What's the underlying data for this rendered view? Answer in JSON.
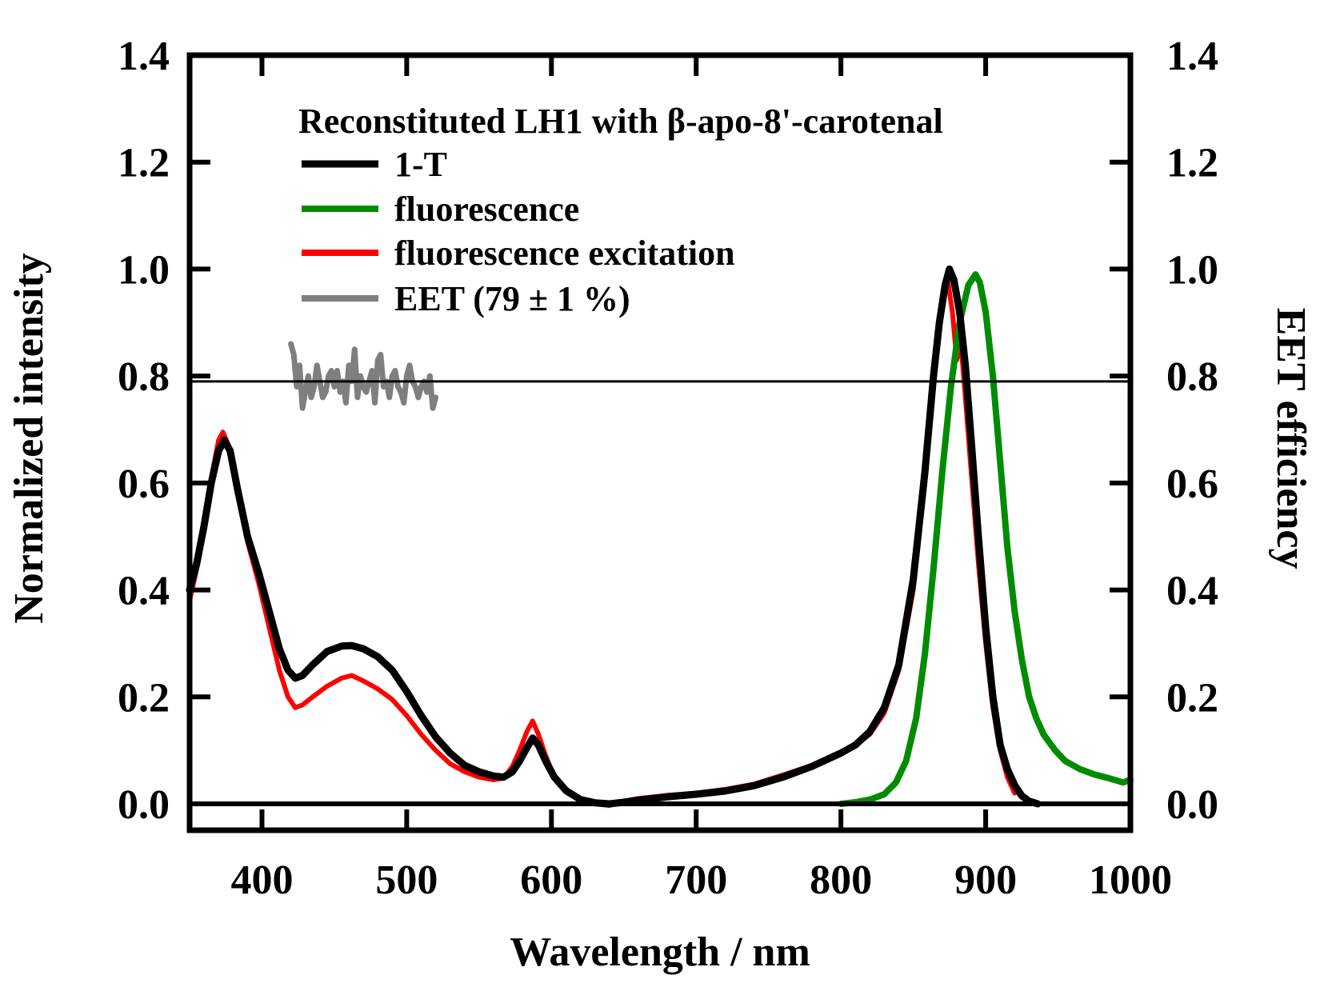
{
  "chart_data": {
    "type": "line",
    "title": "",
    "xlabel": "Wavelength / nm",
    "ylabel": "Normalized intensity",
    "y2label": "EET efficiency",
    "xlim": [
      350,
      1000
    ],
    "ylim": [
      -0.05,
      1.4
    ],
    "y2lim": [
      -0.05,
      1.4
    ],
    "xticks": [
      400,
      500,
      600,
      700,
      800,
      900,
      1000
    ],
    "yticks": [
      "0.0",
      "0.2",
      "0.4",
      "0.6",
      "0.8",
      "1.0",
      "1.2",
      "1.4"
    ],
    "ytick_values": [
      0.0,
      0.2,
      0.4,
      0.6,
      0.8,
      1.0,
      1.2,
      1.4
    ],
    "grid": false,
    "legend": {
      "title": "Reconstituted LH1 with β-apo-8'-carotenal",
      "placement": "top-left"
    },
    "reference_lines": [
      {
        "axis": "y",
        "value": 0.0,
        "color": "#000000"
      },
      {
        "axis": "y2",
        "value": 0.79,
        "color": "#000000"
      }
    ],
    "series": [
      {
        "name": "1-T",
        "color": "#000000",
        "x": [
          350,
          355,
          360,
          365,
          370,
          374,
          378,
          383,
          390,
          398,
          405,
          412,
          418,
          423,
          428,
          435,
          445,
          455,
          462,
          470,
          480,
          490,
          500,
          510,
          520,
          530,
          540,
          550,
          560,
          567,
          573,
          578,
          583,
          587,
          591,
          596,
          602,
          610,
          620,
          630,
          640,
          650,
          660,
          680,
          700,
          720,
          740,
          760,
          780,
          800,
          810,
          820,
          830,
          840,
          850,
          858,
          864,
          868,
          872,
          875,
          878,
          882,
          886,
          890,
          895,
          900,
          905,
          910,
          915,
          920,
          925,
          930,
          936
        ],
        "y": [
          0.4,
          0.45,
          0.52,
          0.6,
          0.66,
          0.68,
          0.66,
          0.59,
          0.5,
          0.43,
          0.36,
          0.29,
          0.25,
          0.235,
          0.24,
          0.26,
          0.285,
          0.295,
          0.296,
          0.29,
          0.275,
          0.25,
          0.21,
          0.165,
          0.125,
          0.095,
          0.072,
          0.06,
          0.052,
          0.05,
          0.06,
          0.08,
          0.105,
          0.123,
          0.11,
          0.08,
          0.05,
          0.025,
          0.008,
          0.002,
          0.0,
          0.003,
          0.007,
          0.013,
          0.018,
          0.024,
          0.034,
          0.05,
          0.07,
          0.095,
          0.11,
          0.135,
          0.18,
          0.26,
          0.42,
          0.62,
          0.8,
          0.9,
          0.97,
          1.0,
          0.98,
          0.92,
          0.82,
          0.68,
          0.5,
          0.33,
          0.2,
          0.11,
          0.065,
          0.035,
          0.015,
          0.005,
          0.0
        ]
      },
      {
        "name": "fluorescence",
        "color": "#008c00",
        "x": [
          800,
          810,
          820,
          830,
          838,
          845,
          852,
          858,
          864,
          870,
          876,
          882,
          888,
          893,
          896,
          900,
          905,
          910,
          915,
          920,
          925,
          930,
          935,
          940,
          948,
          955,
          965,
          975,
          985,
          995,
          1000
        ],
        "y": [
          0.0,
          0.003,
          0.008,
          0.018,
          0.04,
          0.08,
          0.16,
          0.28,
          0.44,
          0.62,
          0.78,
          0.9,
          0.97,
          0.99,
          0.975,
          0.92,
          0.8,
          0.64,
          0.48,
          0.36,
          0.27,
          0.2,
          0.16,
          0.13,
          0.1,
          0.08,
          0.065,
          0.055,
          0.048,
          0.04,
          0.045
        ]
      },
      {
        "name": "fluorescence excitation",
        "color": "#ff0000",
        "x": [
          350,
          355,
          360,
          365,
          370,
          373,
          377,
          383,
          390,
          398,
          405,
          412,
          418,
          423,
          428,
          435,
          445,
          455,
          462,
          470,
          480,
          490,
          500,
          510,
          520,
          530,
          540,
          550,
          560,
          567,
          573,
          578,
          583,
          587,
          591,
          596,
          602,
          610,
          620,
          630,
          640,
          650,
          660,
          680,
          700,
          720,
          740,
          760,
          780,
          800,
          810,
          820,
          830,
          840,
          850,
          858,
          864,
          868,
          872,
          874,
          877,
          880,
          883,
          886,
          890,
          895,
          900,
          905,
          910,
          915,
          920
        ],
        "y": [
          0.38,
          0.44,
          0.52,
          0.61,
          0.68,
          0.695,
          0.67,
          0.59,
          0.49,
          0.41,
          0.33,
          0.25,
          0.2,
          0.18,
          0.185,
          0.2,
          0.22,
          0.235,
          0.24,
          0.23,
          0.215,
          0.195,
          0.165,
          0.13,
          0.1,
          0.075,
          0.06,
          0.05,
          0.045,
          0.048,
          0.07,
          0.1,
          0.135,
          0.155,
          0.13,
          0.09,
          0.05,
          0.022,
          0.006,
          0.0,
          -0.003,
          0.005,
          0.01,
          0.016,
          0.02,
          0.027,
          0.037,
          0.054,
          0.072,
          0.094,
          0.11,
          0.13,
          0.17,
          0.25,
          0.4,
          0.6,
          0.79,
          0.9,
          0.96,
          0.975,
          0.92,
          0.83,
          0.86,
          0.76,
          0.62,
          0.45,
          0.3,
          0.18,
          0.1,
          0.05,
          0.02
        ]
      },
      {
        "name": "EET (79 ± 1 %)",
        "color": "#7f7f7f",
        "axis": "y2",
        "x": [
          420,
          422,
          424,
          426,
          428,
          430,
          432,
          434,
          436,
          438,
          440,
          442,
          444,
          446,
          448,
          450,
          452,
          454,
          456,
          458,
          460,
          462,
          464,
          466,
          468,
          470,
          472,
          474,
          476,
          478,
          480,
          482,
          484,
          486,
          488,
          490,
          492,
          494,
          496,
          498,
          500,
          502,
          504,
          506,
          508,
          510,
          512,
          514,
          516,
          518,
          520
        ],
        "y": [
          0.86,
          0.84,
          0.78,
          0.82,
          0.74,
          0.77,
          0.8,
          0.76,
          0.78,
          0.82,
          0.79,
          0.76,
          0.77,
          0.8,
          0.81,
          0.78,
          0.81,
          0.77,
          0.79,
          0.75,
          0.82,
          0.79,
          0.85,
          0.76,
          0.8,
          0.78,
          0.77,
          0.79,
          0.81,
          0.75,
          0.83,
          0.84,
          0.78,
          0.79,
          0.76,
          0.8,
          0.81,
          0.78,
          0.77,
          0.75,
          0.8,
          0.82,
          0.79,
          0.78,
          0.76,
          0.78,
          0.79,
          0.77,
          0.8,
          0.74,
          0.76
        ]
      }
    ]
  }
}
